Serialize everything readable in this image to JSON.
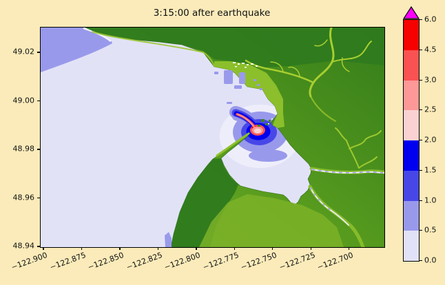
{
  "title": "3:15:00 after earthquake",
  "axes": {
    "x_tick_labels": [
      "−122.900",
      "−122.875",
      "−122.850",
      "−122.825",
      "−122.800",
      "−122.775",
      "−122.750",
      "−122.725",
      "−122.700"
    ],
    "x_tick_values": [
      -122.9,
      -122.875,
      -122.85,
      -122.825,
      -122.8,
      -122.775,
      -122.75,
      -122.725,
      -122.7
    ],
    "y_tick_labels": [
      "48.94",
      "48.96",
      "48.98",
      "49.00",
      "49.02"
    ],
    "y_tick_values": [
      48.94,
      48.96,
      48.98,
      49.0,
      49.02
    ]
  },
  "colorbar": {
    "tick_labels": [
      "0.0",
      "0.5",
      "1.0",
      "1.5",
      "2.0",
      "2.5",
      "3.0",
      "4.5",
      "6.0"
    ],
    "boundaries": [
      0.0,
      0.5,
      1.0,
      1.5,
      2.0,
      2.5,
      3.0,
      4.5,
      6.0
    ],
    "segment_colors": [
      "#E1E1F7",
      "#9999EC",
      "#4747E8",
      "#0000F0",
      "#FBD2D2",
      "#FC9898",
      "#FA5252",
      "#F60000"
    ],
    "over_color": "#FF00FF"
  },
  "chart_data": {
    "type": "heatmap",
    "title": "3:15:00 after earthquake",
    "xlabel": "",
    "ylabel": "",
    "xlim": [
      -122.902,
      -122.677
    ],
    "ylim": [
      48.9398,
      49.0303
    ],
    "x_ticks": [
      -122.9,
      -122.875,
      -122.85,
      -122.825,
      -122.8,
      -122.775,
      -122.75,
      -122.725,
      -122.7
    ],
    "y_ticks": [
      48.94,
      48.96,
      48.98,
      49.0,
      49.02
    ],
    "grid": false,
    "legend_position": "none",
    "colorbar": {
      "boundaries": [
        0.0,
        0.5,
        1.0,
        1.5,
        2.0,
        2.5,
        3.0,
        4.5,
        6.0
      ],
      "colors": [
        "#E1E1F7",
        "#9999EC",
        "#4747E8",
        "#0000F0",
        "#FBD2D2",
        "#FC9898",
        "#FA5252",
        "#F60000"
      ],
      "over_color": "#FF00FF",
      "extend": "max"
    },
    "features": {
      "open_water_value_range": [
        0.0,
        0.5
      ],
      "offshore_patch_topleft_value_range": [
        0.5,
        1.0
      ],
      "flood_ring_center": {
        "lon": -122.758,
        "lat": 48.988
      },
      "flood_ring_values_outward": [
        4.5,
        3.0,
        2.5,
        2.0,
        1.5,
        1.0,
        0.5
      ],
      "description": "Simulated tsunami wave field 3:15:00 after earthquake; concentric high-amplitude rings with a comma-shaped tail at the harbor mouth (Drayton Harbor / Blaine area), green terrain with dendritic river channels on land, light-lavender open water"
    }
  },
  "map": {
    "background_color": "#FBEBBA",
    "water_color": "#E2E2F7",
    "land_dark_green": "#2F7A1E",
    "land_light_green": "#79B027",
    "river_channel_color": "#A6CE30",
    "creek_water_color": "#EDEDF9"
  }
}
